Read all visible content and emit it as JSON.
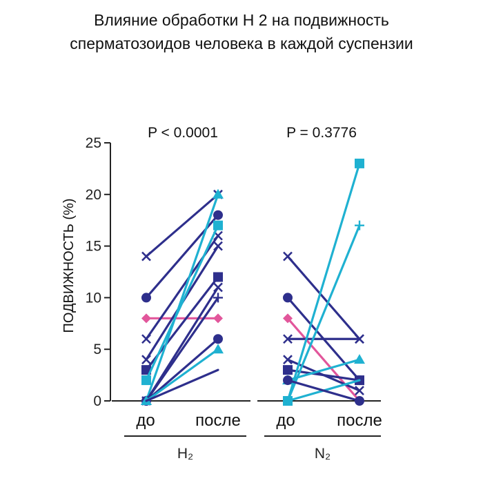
{
  "title_lines": [
    "Влияние обработки Н 2 на подвижность",
    "сперматозоидов человека в каждой суспензии"
  ],
  "colors": {
    "navy": "#2e2f8c",
    "cyan": "#1fb1d1",
    "pink": "#e2569b",
    "axis": "#222222"
  },
  "chart_data": {
    "type": "line",
    "ylabel": "ПОДВИЖНОСТЬ (%)",
    "ylim": [
      0,
      25
    ],
    "yticks": [
      "0",
      "5",
      "10",
      "15",
      "20",
      "25"
    ],
    "panels": [
      {
        "group_label": "H₂",
        "p_label": "P < 0.0001",
        "categories": [
          "до",
          "после"
        ],
        "series": [
          {
            "color": "navy",
            "marker": "x",
            "values": [
              14,
              20
            ]
          },
          {
            "color": "navy",
            "marker": "circle",
            "values": [
              10,
              18
            ]
          },
          {
            "color": "pink",
            "marker": "diamond",
            "values": [
              8,
              8
            ]
          },
          {
            "color": "navy",
            "marker": "x",
            "values": [
              6,
              16
            ]
          },
          {
            "color": "navy",
            "marker": "x",
            "values": [
              4,
              15
            ]
          },
          {
            "color": "navy",
            "marker": "square",
            "values": [
              3,
              12
            ]
          },
          {
            "color": "cyan",
            "marker": "square",
            "values": [
              2,
              17
            ]
          },
          {
            "color": "cyan",
            "marker": "triangle",
            "values": [
              0,
              20
            ]
          },
          {
            "color": "navy",
            "marker": "x",
            "values": [
              0,
              11
            ]
          },
          {
            "color": "navy",
            "marker": "plus",
            "values": [
              0,
              10
            ]
          },
          {
            "color": "navy",
            "marker": "circle",
            "values": [
              0,
              6
            ]
          },
          {
            "color": "cyan",
            "marker": "triangle",
            "values": [
              0,
              5
            ]
          },
          {
            "color": "navy",
            "marker": "none",
            "values": [
              0,
              3
            ]
          }
        ]
      },
      {
        "group_label": "N₂",
        "p_label": "P = 0.3776",
        "categories": [
          "до",
          "после"
        ],
        "series": [
          {
            "color": "navy",
            "marker": "x",
            "values": [
              14,
              6
            ]
          },
          {
            "color": "navy",
            "marker": "circle",
            "values": [
              10,
              2
            ]
          },
          {
            "color": "pink",
            "marker": "diamond",
            "values": [
              8,
              0
            ]
          },
          {
            "color": "navy",
            "marker": "x",
            "values": [
              6,
              6
            ]
          },
          {
            "color": "navy",
            "marker": "x",
            "values": [
              4,
              1
            ]
          },
          {
            "color": "navy",
            "marker": "square",
            "values": [
              3,
              2
            ]
          },
          {
            "color": "cyan",
            "marker": "square",
            "values": [
              0,
              23
            ]
          },
          {
            "color": "cyan",
            "marker": "plus",
            "values": [
              0,
              17
            ]
          },
          {
            "color": "cyan",
            "marker": "triangle",
            "values": [
              2,
              4
            ]
          },
          {
            "color": "cyan",
            "marker": "none",
            "values": [
              0,
              2
            ]
          },
          {
            "color": "navy",
            "marker": "circle",
            "values": [
              2,
              0
            ]
          }
        ]
      }
    ]
  }
}
